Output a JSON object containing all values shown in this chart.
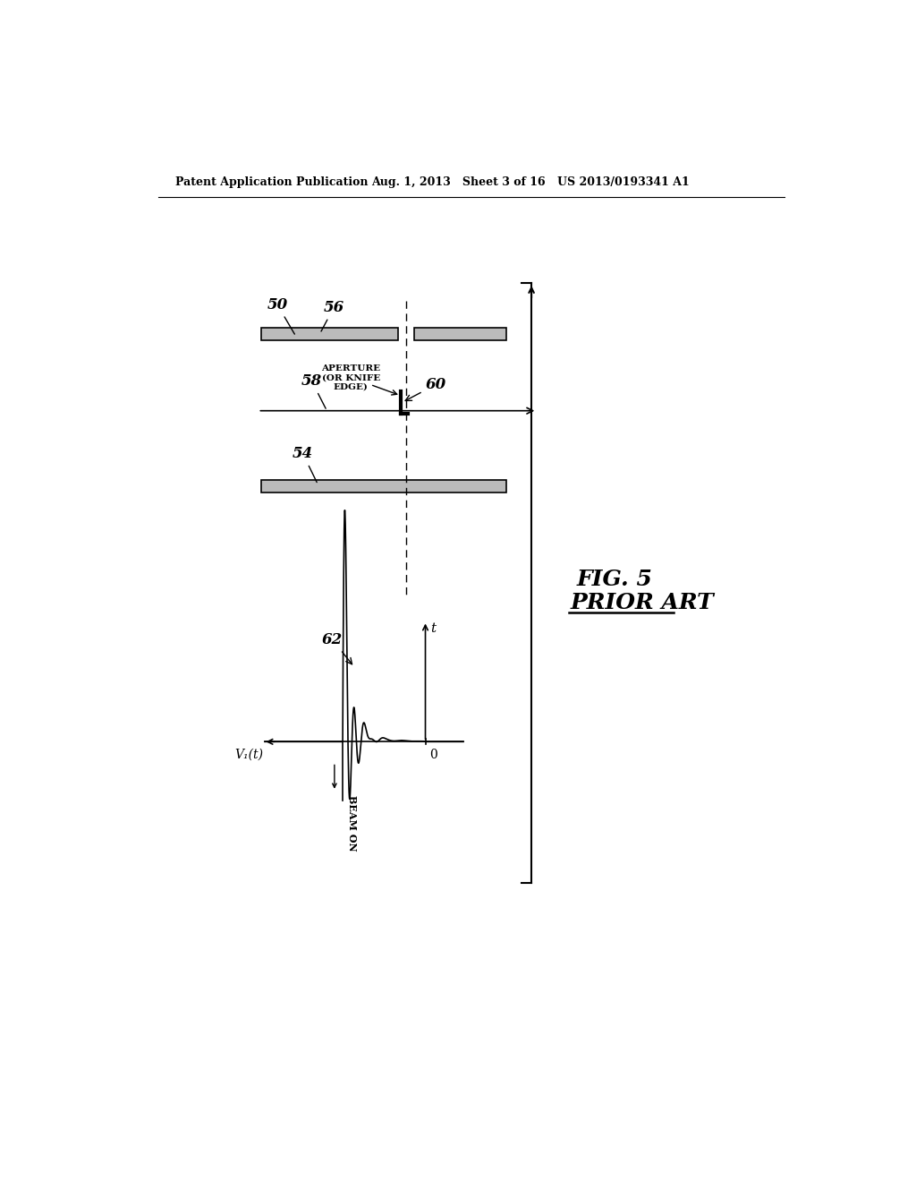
{
  "header_left": "Patent Application Publication",
  "header_mid": "Aug. 1, 2013   Sheet 3 of 16",
  "header_right": "US 2013/0193341 A1",
  "fig_label": "FIG. 5",
  "fig_sublabel": "PRIOR ART",
  "bg_color": "#ffffff",
  "line_color": "#000000",
  "ref_50": "50",
  "ref_54": "54",
  "ref_56": "56",
  "ref_58": "58",
  "ref_60": "60",
  "ref_62": "62",
  "aperture_label": "APERTURE\n(OR KNIFE\nEDGE)",
  "beam_on_label": "BEAM ON",
  "v1_label": "V₁(t)",
  "t_label": "t",
  "zero_label": "0"
}
